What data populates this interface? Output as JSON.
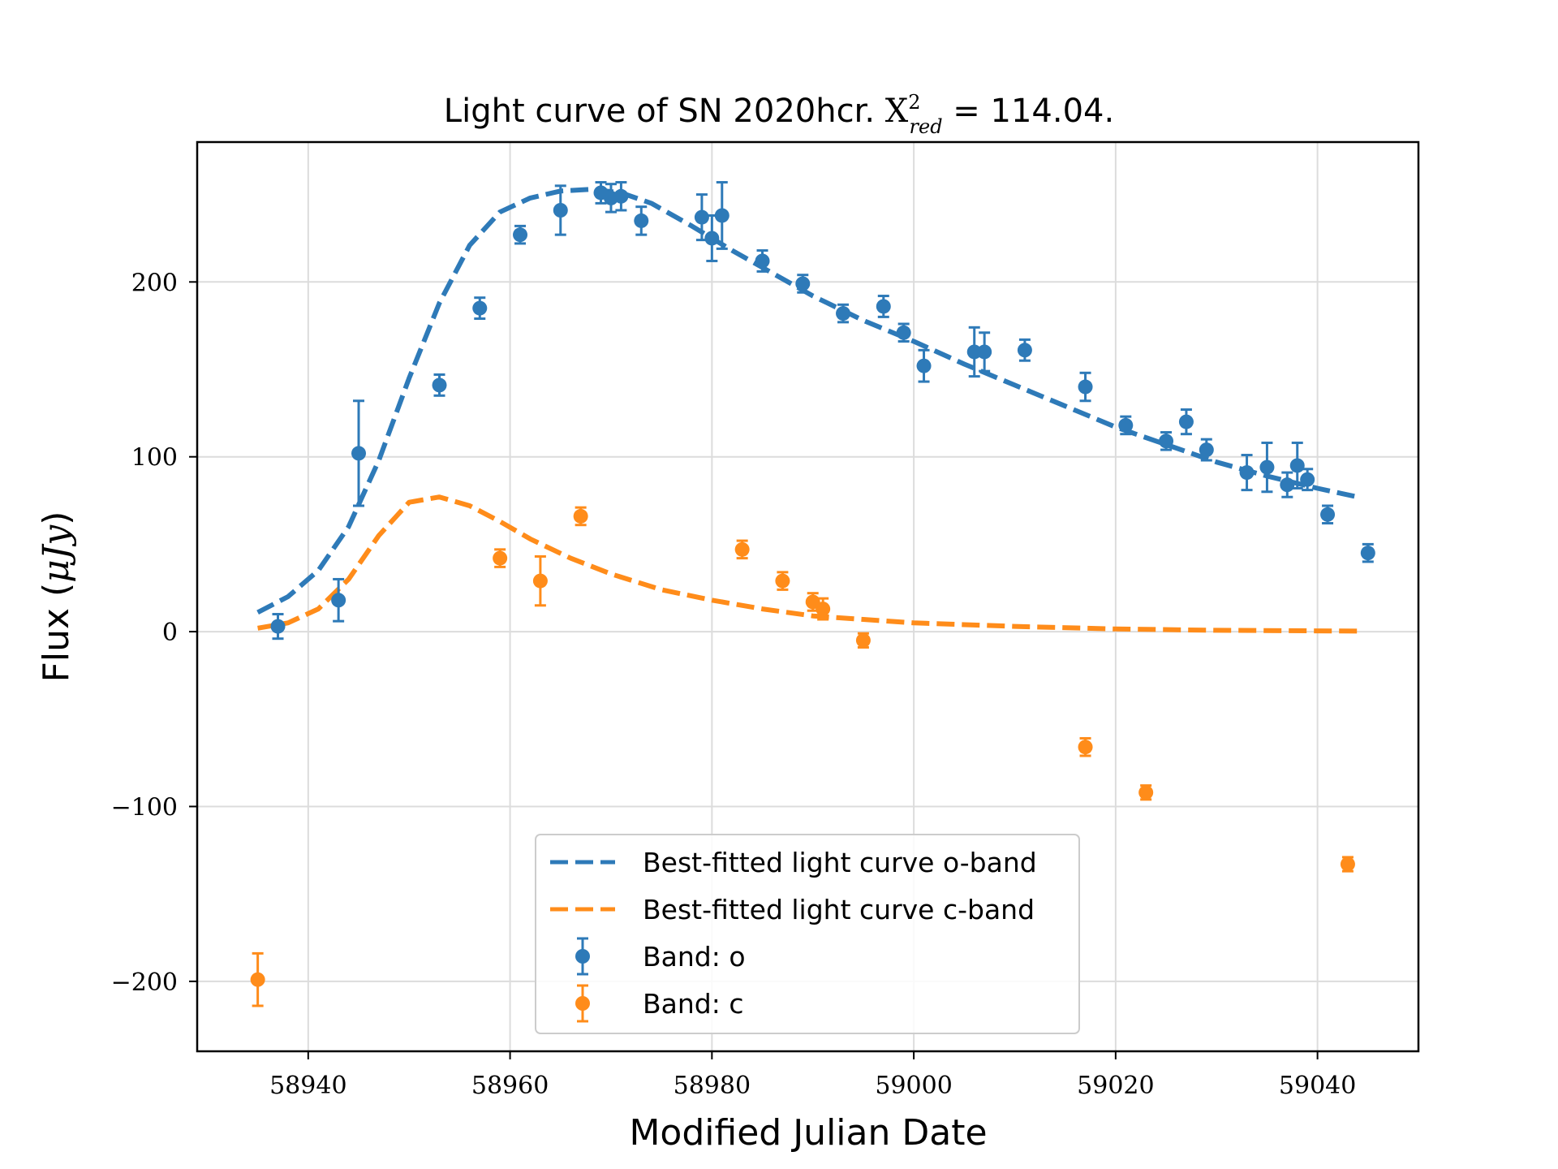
{
  "chart_data": {
    "type": "scatter",
    "title": {
      "prefix": "Light curve of SN 2020hcr.  ",
      "chi_symbol": "X",
      "superscript": "2",
      "subscript": "red",
      "suffix": " = 114.04."
    },
    "xlabel": "Modified Julian Date",
    "ylabel": {
      "prefix": "Flux (",
      "unit": "μJy",
      "suffix": ")"
    },
    "xlim": [
      58929,
      59050
    ],
    "ylim": [
      -240,
      280
    ],
    "xticks": [
      58940,
      58960,
      58980,
      59000,
      59020,
      59040
    ],
    "yticks": [
      -200,
      -100,
      0,
      100,
      200
    ],
    "yticks_labels": [
      "−200",
      "−100",
      "0",
      "100",
      "200"
    ],
    "grid": true,
    "legend_position": "lower-center",
    "series": [
      {
        "name": "Best-fitted light curve o-band",
        "kind": "line",
        "style": "dashed",
        "color": "#2e7ab8",
        "x": [
          58935,
          58938,
          58941,
          58944,
          58947,
          58950,
          58953,
          58956,
          58959,
          58962,
          58965,
          58968,
          58971,
          58974,
          58978,
          58982,
          58986,
          58990,
          58995,
          59000,
          59005,
          59010,
          59015,
          59020,
          59025,
          59030,
          59035,
          59040,
          59044
        ],
        "y": [
          11,
          20,
          35,
          60,
          98,
          145,
          188,
          221,
          240,
          248,
          252,
          253,
          251,
          245,
          232,
          218,
          205,
          192,
          178,
          166,
          153,
          141,
          129,
          117,
          107,
          97,
          89,
          82,
          77
        ]
      },
      {
        "name": "Best-fitted light curve c-band",
        "kind": "line",
        "style": "dashed",
        "color": "#ff8c1a",
        "x": [
          58935,
          58938,
          58941,
          58944,
          58947,
          58950,
          58953,
          58956,
          58959,
          58962,
          58966,
          58970,
          58975,
          58980,
          58985,
          58990,
          58995,
          59000,
          59010,
          59020,
          59030,
          59044
        ],
        "y": [
          2,
          5,
          13,
          30,
          55,
          74,
          77,
          72,
          63,
          53,
          42,
          33,
          24,
          18,
          13,
          9,
          7,
          5,
          3,
          1.5,
          0.8,
          0.3
        ]
      },
      {
        "name": "Band: o",
        "kind": "errorbar",
        "color": "#2e7ab8",
        "x": [
          58937,
          58943,
          58945,
          58953,
          58957,
          58961,
          58965,
          58969,
          58970,
          58971,
          58973,
          58979,
          58980,
          58981,
          58985,
          58989,
          58993,
          58997,
          58999,
          59001,
          59006,
          59007,
          59011,
          59017,
          59021,
          59025,
          59027,
          59029,
          59033,
          59035,
          59037,
          59038,
          59039,
          59041,
          59045
        ],
        "y": [
          3,
          18,
          102,
          141,
          185,
          227,
          241,
          251,
          248,
          249,
          235,
          237,
          225,
          238,
          212,
          199,
          182,
          186,
          171,
          152,
          160,
          160,
          161,
          140,
          118,
          109,
          120,
          104,
          91,
          94,
          84,
          95,
          87,
          67,
          45
        ],
        "err": [
          7,
          12,
          30,
          6,
          6,
          5,
          14,
          6,
          8,
          8,
          8,
          13,
          13,
          19,
          6,
          5,
          5,
          6,
          5,
          9,
          14,
          11,
          6,
          8,
          5,
          5,
          7,
          6,
          10,
          14,
          7,
          13,
          6,
          5,
          5
        ]
      },
      {
        "name": "Band: c",
        "kind": "errorbar",
        "color": "#ff8c1a",
        "x": [
          58935,
          58959,
          58963,
          58967,
          58983,
          58987,
          58990,
          58991,
          58995,
          59017,
          59023,
          59043
        ],
        "y": [
          -199,
          42,
          29,
          66,
          47,
          29,
          17,
          13,
          -5,
          -66,
          -92,
          -133
        ],
        "err": [
          15,
          5,
          14,
          5,
          5,
          5,
          5,
          6,
          4,
          5,
          4,
          4
        ]
      }
    ]
  }
}
